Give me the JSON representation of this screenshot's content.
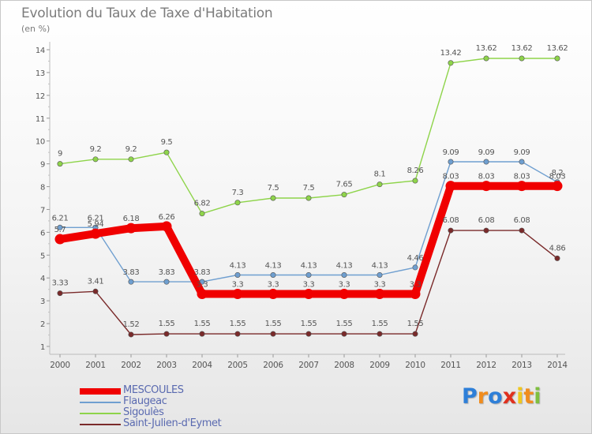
{
  "title": "Evolution du Taux de Taxe d'Habitation",
  "subtitle": "(en %)",
  "brand": {
    "letters": [
      "P",
      "r",
      "o",
      "x",
      "i",
      "t",
      "i"
    ],
    "colors": [
      "#2e7fd8",
      "#f08c1e",
      "#2e7fd8",
      "#e0301e",
      "#f0c81e",
      "#f08c1e",
      "#7fbf3f"
    ]
  },
  "chart_data": {
    "type": "line",
    "title": "Evolution du Taux de Taxe d'Habitation",
    "ylabel": "(en %)",
    "xlabel": "",
    "x": [
      "2000",
      "2001",
      "2002",
      "2003",
      "2004",
      "2005",
      "2006",
      "2007",
      "2008",
      "2009",
      "2010",
      "2011",
      "2012",
      "2013",
      "2014"
    ],
    "ylim": [
      1,
      14
    ],
    "yticks": [
      "1",
      "2",
      "3",
      "4",
      "5",
      "6",
      "7",
      "8",
      "9",
      "10",
      "11",
      "12",
      "13",
      "14"
    ],
    "grid": false,
    "legend": "bottom-left",
    "series": [
      {
        "name": "MESCOULES",
        "color": "#f00000",
        "values": [
          5.7,
          5.94,
          6.18,
          6.26,
          3.3,
          3.3,
          3.3,
          3.3,
          3.3,
          3.3,
          3.3,
          8.03,
          8.03,
          8.03,
          8.03
        ],
        "labels": [
          "5.7",
          "5.94",
          "6.18",
          "6.26",
          "3.3",
          "3.3",
          "3.3",
          "3.3",
          "3.3",
          "3.3",
          "3.3",
          "8.03",
          "8.03",
          "8.03",
          "8.03"
        ]
      },
      {
        "name": "Flaugeac",
        "color": "#6f9fd0",
        "values": [
          6.21,
          6.21,
          3.83,
          3.83,
          3.83,
          4.13,
          4.13,
          4.13,
          4.13,
          4.13,
          4.46,
          9.09,
          9.09,
          9.09,
          8.2
        ],
        "labels": [
          "6.21",
          "6.21",
          "3.83",
          "3.83",
          "3.83",
          "4.13",
          "4.13",
          "4.13",
          "4.13",
          "4.13",
          "4.46",
          "9.09",
          "9.09",
          "9.09",
          "8.2"
        ]
      },
      {
        "name": "Sigoulès",
        "color": "#8ed44a",
        "values": [
          9,
          9.2,
          9.2,
          9.5,
          6.82,
          7.3,
          7.5,
          7.5,
          7.65,
          8.1,
          8.26,
          13.42,
          13.62,
          13.62,
          13.62
        ],
        "labels": [
          "9",
          "9.2",
          "9.2",
          "9.5",
          "6.82",
          "7.3",
          "7.5",
          "7.5",
          "7.65",
          "8.1",
          "8.26",
          "13.42",
          "13.62",
          "13.62",
          "13.62"
        ]
      },
      {
        "name": "Saint-Julien-d'Eymet",
        "color": "#7a2a2a",
        "values": [
          3.33,
          3.41,
          1.52,
          1.55,
          1.55,
          1.55,
          1.55,
          1.55,
          1.55,
          1.55,
          1.55,
          6.08,
          6.08,
          6.08,
          4.86
        ],
        "labels": [
          "3.33",
          "3.41",
          "1.52",
          "1.55",
          "1.55",
          "1.55",
          "1.55",
          "1.55",
          "1.55",
          "1.55",
          "1.55",
          "6.08",
          "6.08",
          "6.08",
          "4.86"
        ]
      }
    ]
  }
}
